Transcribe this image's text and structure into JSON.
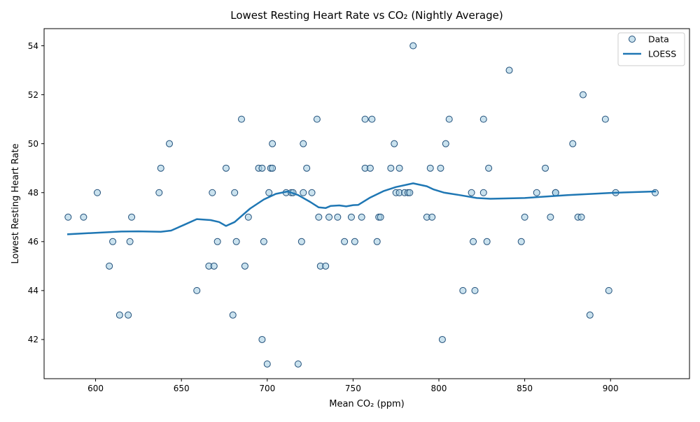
{
  "chart_data": {
    "type": "scatter",
    "title": "Lowest Resting Heart Rate vs CO₂ (Nightly Average)",
    "xlabel": "Mean CO₂ (ppm)",
    "ylabel": "Lowest Resting Heart Rate",
    "xlim": [
      570,
      946
    ],
    "ylim": [
      40.4,
      54.7
    ],
    "xticks": [
      600,
      650,
      700,
      750,
      800,
      850,
      900
    ],
    "yticks": [
      42,
      44,
      46,
      48,
      50,
      52,
      54
    ],
    "grid": false,
    "legend_position": "top-right",
    "legend": [
      "Data",
      "LOESS"
    ],
    "colors": {
      "point_fill": "#a6cee3",
      "point_edge": "#1f4e79",
      "line": "#1f77b4"
    },
    "series": [
      {
        "name": "Data",
        "kind": "scatter",
        "points": [
          [
            584,
            47
          ],
          [
            593,
            47
          ],
          [
            601,
            48
          ],
          [
            608,
            45
          ],
          [
            610,
            46
          ],
          [
            614,
            43
          ],
          [
            619,
            43
          ],
          [
            620,
            46
          ],
          [
            621,
            47
          ],
          [
            637,
            48
          ],
          [
            638,
            49
          ],
          [
            643,
            50
          ],
          [
            659,
            44
          ],
          [
            666,
            45
          ],
          [
            668,
            48
          ],
          [
            669,
            45
          ],
          [
            671,
            46
          ],
          [
            676,
            49
          ],
          [
            680,
            43
          ],
          [
            681,
            48
          ],
          [
            682,
            46
          ],
          [
            685,
            51
          ],
          [
            687,
            45
          ],
          [
            689,
            47
          ],
          [
            695,
            49
          ],
          [
            697,
            49
          ],
          [
            697,
            42
          ],
          [
            698,
            46
          ],
          [
            700,
            41
          ],
          [
            701,
            48
          ],
          [
            702,
            49
          ],
          [
            703,
            49
          ],
          [
            703,
            50
          ],
          [
            711,
            48
          ],
          [
            714,
            48
          ],
          [
            715,
            48
          ],
          [
            718,
            41
          ],
          [
            720,
            46
          ],
          [
            721,
            48
          ],
          [
            721,
            50
          ],
          [
            723,
            49
          ],
          [
            726,
            48
          ],
          [
            729,
            51
          ],
          [
            730,
            47
          ],
          [
            731,
            45
          ],
          [
            734,
            45
          ],
          [
            736,
            47
          ],
          [
            741,
            47
          ],
          [
            745,
            46
          ],
          [
            749,
            47
          ],
          [
            751,
            46
          ],
          [
            755,
            47
          ],
          [
            757,
            49
          ],
          [
            757,
            51
          ],
          [
            760,
            49
          ],
          [
            761,
            51
          ],
          [
            764,
            46
          ],
          [
            765,
            47
          ],
          [
            766,
            47
          ],
          [
            772,
            49
          ],
          [
            774,
            50
          ],
          [
            775,
            48
          ],
          [
            777,
            48
          ],
          [
            777,
            49
          ],
          [
            780,
            48
          ],
          [
            782,
            48
          ],
          [
            783,
            48
          ],
          [
            785,
            54
          ],
          [
            793,
            47
          ],
          [
            795,
            49
          ],
          [
            796,
            47
          ],
          [
            801,
            49
          ],
          [
            802,
            42
          ],
          [
            804,
            50
          ],
          [
            806,
            51
          ],
          [
            814,
            44
          ],
          [
            819,
            48
          ],
          [
            820,
            46
          ],
          [
            821,
            44
          ],
          [
            826,
            51
          ],
          [
            826,
            48
          ],
          [
            828,
            46
          ],
          [
            829,
            49
          ],
          [
            841,
            53
          ],
          [
            848,
            46
          ],
          [
            850,
            47
          ],
          [
            857,
            48
          ],
          [
            862,
            49
          ],
          [
            865,
            47
          ],
          [
            868,
            48
          ],
          [
            868,
            48
          ],
          [
            878,
            50
          ],
          [
            881,
            47
          ],
          [
            883,
            47
          ],
          [
            884,
            52
          ],
          [
            888,
            43
          ],
          [
            897,
            51
          ],
          [
            899,
            44
          ],
          [
            903,
            48
          ],
          [
            926,
            48
          ]
        ]
      },
      {
        "name": "LOESS",
        "kind": "line",
        "points": [
          [
            584,
            46.3
          ],
          [
            600,
            46.36
          ],
          [
            615,
            46.41
          ],
          [
            625,
            46.42
          ],
          [
            638,
            46.4
          ],
          [
            644,
            46.45
          ],
          [
            652,
            46.7
          ],
          [
            659,
            46.92
          ],
          [
            667,
            46.88
          ],
          [
            672,
            46.8
          ],
          [
            676,
            46.64
          ],
          [
            681,
            46.8
          ],
          [
            690,
            47.35
          ],
          [
            698,
            47.72
          ],
          [
            705,
            47.95
          ],
          [
            712,
            48.05
          ],
          [
            718,
            47.9
          ],
          [
            725,
            47.62
          ],
          [
            730,
            47.4
          ],
          [
            734,
            47.37
          ],
          [
            737,
            47.46
          ],
          [
            742,
            47.48
          ],
          [
            746,
            47.44
          ],
          [
            750,
            47.49
          ],
          [
            753,
            47.5
          ],
          [
            760,
            47.8
          ],
          [
            768,
            48.07
          ],
          [
            775,
            48.23
          ],
          [
            785,
            48.38
          ],
          [
            793,
            48.26
          ],
          [
            797,
            48.13
          ],
          [
            803,
            48.0
          ],
          [
            812,
            47.9
          ],
          [
            822,
            47.78
          ],
          [
            830,
            47.75
          ],
          [
            850,
            47.78
          ],
          [
            875,
            47.9
          ],
          [
            900,
            47.99
          ],
          [
            926,
            48.05
          ]
        ]
      }
    ]
  }
}
